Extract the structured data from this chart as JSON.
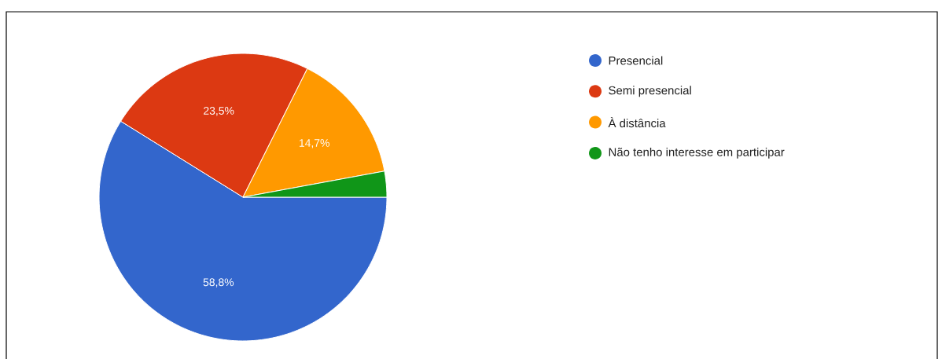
{
  "chart_data": {
    "type": "pie",
    "categories": [
      "Presencial",
      "Semi presencial",
      "À distância",
      "Não tenho interesse em participar"
    ],
    "values": [
      58.8,
      23.5,
      14.7,
      2.9
    ],
    "colors": [
      "#3366cc",
      "#dc3912",
      "#ff9900",
      "#109618"
    ],
    "value_labels": [
      "58,8%",
      "23,5%",
      "14,7%",
      null
    ],
    "legend": "right"
  }
}
